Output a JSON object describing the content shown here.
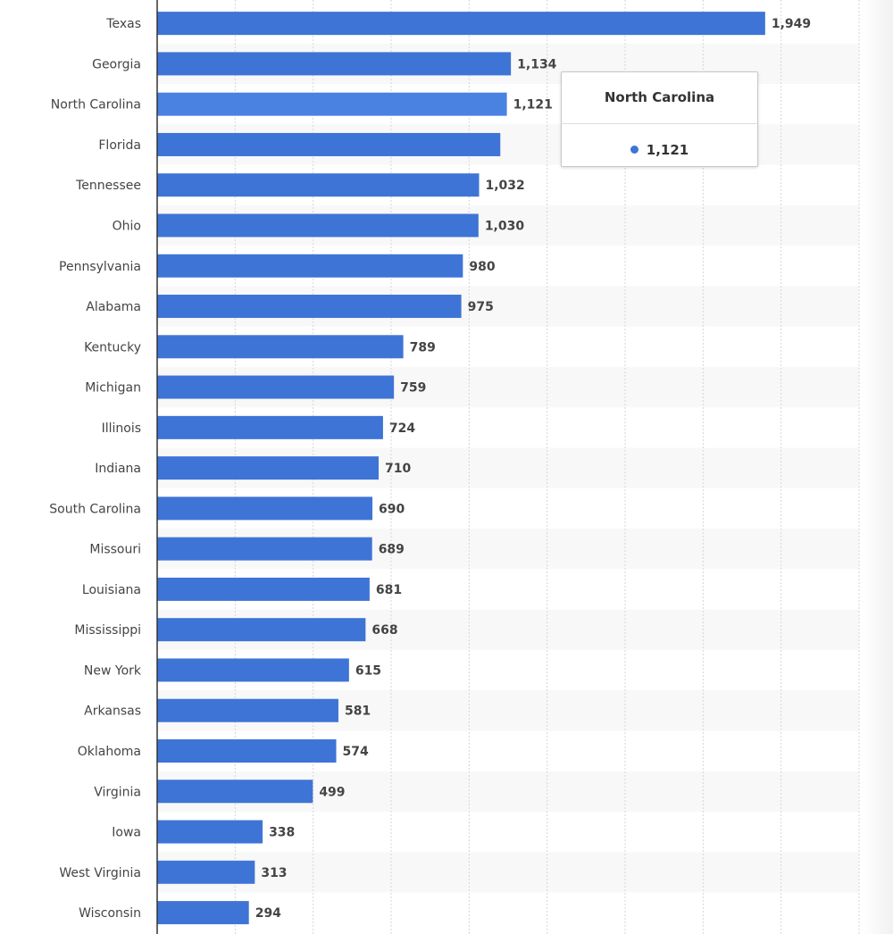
{
  "chart_data": {
    "type": "bar",
    "orientation": "horizontal",
    "categories": [
      "Texas",
      "Georgia",
      "North Carolina",
      "Florida",
      "Tennessee",
      "Ohio",
      "Pennsylvania",
      "Alabama",
      "Kentucky",
      "Michigan",
      "Illinois",
      "Indiana",
      "South Carolina",
      "Missouri",
      "Louisiana",
      "Mississippi",
      "New York",
      "Arkansas",
      "Oklahoma",
      "Virginia",
      "Iowa",
      "West Virginia",
      "Wisconsin"
    ],
    "values": [
      1949,
      1134,
      1121,
      1100,
      1032,
      1030,
      980,
      975,
      789,
      759,
      724,
      710,
      690,
      689,
      681,
      668,
      615,
      581,
      574,
      499,
      338,
      313,
      294
    ],
    "value_labels": [
      "1,949",
      "1,134",
      "1,121",
      "",
      "1,032",
      "1,030",
      "980",
      "975",
      "789",
      "759",
      "724",
      "710",
      "690",
      "689",
      "681",
      "668",
      "615",
      "581",
      "574",
      "499",
      "338",
      "313",
      "294"
    ],
    "xlim": [
      0,
      2250
    ],
    "grid_step": 250,
    "grid": true,
    "bar_color": "#3e74d6",
    "hover_color": "#4a82e2"
  },
  "tooltip": {
    "title": "North Carolina",
    "value": "1,121",
    "color": "#3e74d6"
  }
}
